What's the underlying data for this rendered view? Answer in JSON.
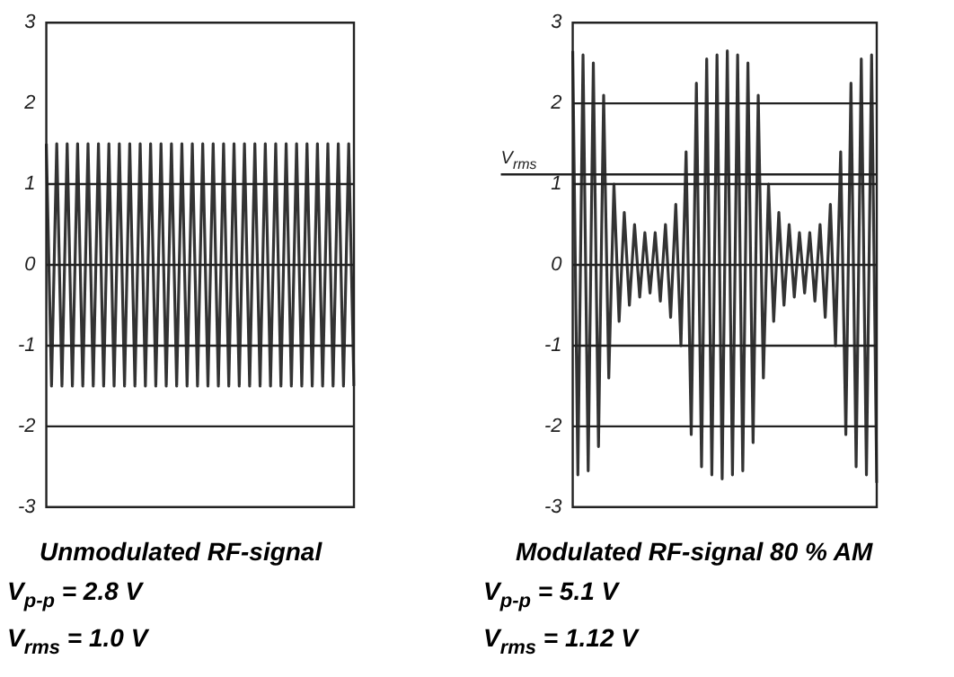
{
  "chart_data": [
    {
      "type": "line",
      "title": "Unmodulated RF-signal",
      "annotations": [
        "V$_{p-p}$ = 2.8 V",
        "V$_{rms}$ = 1.0 V"
      ],
      "categories": [
        null,
        null,
        null,
        null,
        null,
        null,
        null,
        null,
        null,
        null,
        null,
        null,
        null,
        null,
        null,
        null,
        null,
        null,
        null,
        null,
        null,
        null,
        null,
        null,
        null,
        null,
        null,
        null,
        null,
        null,
        null,
        null,
        null,
        null,
        null,
        null,
        null,
        null,
        null,
        null,
        null,
        null,
        null,
        null,
        null,
        null,
        null,
        null,
        null,
        null,
        null,
        null,
        null,
        null,
        null,
        null,
        null,
        null,
        null,
        null
      ],
      "series": [
        {
          "color": "#333333",
          "values": [
            1.5,
            -1.5,
            1.5,
            -1.5,
            1.5,
            -1.5,
            1.5,
            -1.5,
            1.5,
            -1.5,
            1.5,
            -1.5,
            1.5,
            -1.5,
            1.5,
            -1.5,
            1.5,
            -1.5,
            1.5,
            -1.5,
            1.5,
            -1.5,
            1.5,
            -1.5,
            1.5,
            -1.5,
            1.5,
            -1.5,
            1.5,
            -1.5,
            1.5,
            -1.5,
            1.5,
            -1.5,
            1.5,
            -1.5,
            1.5,
            -1.5,
            1.5,
            -1.5,
            1.5,
            -1.5,
            1.5,
            -1.5,
            1.5,
            -1.5,
            1.5,
            -1.5,
            1.5,
            -1.5,
            1.5,
            -1.5,
            1.5,
            -1.5,
            1.5,
            -1.5,
            1.5,
            -1.5,
            1.5,
            -1.5
          ]
        }
      ],
      "ylim": [
        -3,
        3
      ],
      "yticks": [
        -3,
        -2,
        -1,
        0,
        1,
        2,
        3
      ],
      "tick_labels": "y",
      "grid": false,
      "legend": false,
      "ref_lines": [
        {
          "axis": "y",
          "value": 1
        },
        {
          "axis": "y",
          "value": 0
        },
        {
          "axis": "y",
          "value": -1
        },
        {
          "axis": "y",
          "value": -2
        }
      ]
    },
    {
      "type": "line",
      "title": "Modulated RF-signal 80 % AM",
      "annotations": [
        "V$_{p-p}$ = 5.1 V",
        "V$_{rms}$ = 1.12 V"
      ],
      "categories": [
        null,
        null,
        null,
        null,
        null,
        null,
        null,
        null,
        null,
        null,
        null,
        null,
        null,
        null,
        null,
        null,
        null,
        null,
        null,
        null,
        null,
        null,
        null,
        null,
        null,
        null,
        null,
        null,
        null,
        null,
        null,
        null,
        null,
        null,
        null,
        null,
        null,
        null,
        null,
        null,
        null,
        null,
        null,
        null,
        null,
        null,
        null,
        null,
        null,
        null,
        null,
        null,
        null,
        null,
        null,
        null,
        null,
        null,
        null,
        null
      ],
      "series": [
        {
          "color": "#333333",
          "values": [
            2.65,
            -2.6,
            2.6,
            -2.55,
            2.5,
            -2.25,
            2.1,
            -1.4,
            1.0,
            -0.7,
            0.65,
            -0.5,
            0.5,
            -0.4,
            0.4,
            -0.35,
            0.4,
            -0.45,
            0.5,
            -0.65,
            0.75,
            -1.0,
            1.4,
            -2.1,
            2.25,
            -2.5,
            2.55,
            -2.6,
            2.6,
            -2.65,
            2.65,
            -2.6,
            2.6,
            -2.55,
            2.5,
            -2.2,
            2.1,
            -1.4,
            1.0,
            -0.7,
            0.65,
            -0.5,
            0.5,
            -0.4,
            0.4,
            -0.35,
            0.4,
            -0.45,
            0.5,
            -0.65,
            0.75,
            -1.0,
            1.4,
            -2.1,
            2.25,
            -2.5,
            2.55,
            -2.6,
            2.6,
            -2.7
          ]
        }
      ],
      "ylim": [
        -3,
        3
      ],
      "yticks": [
        -3,
        -2,
        -1,
        0,
        1,
        2,
        3
      ],
      "tick_labels": "y",
      "grid": false,
      "legend": false,
      "ref_lines": [
        {
          "axis": "y",
          "value": 2
        },
        {
          "axis": "y",
          "value": 1.12,
          "label": "V$_{rms}$"
        },
        {
          "axis": "y",
          "value": 1
        },
        {
          "axis": "y",
          "value": 0
        },
        {
          "axis": "y",
          "value": -1
        },
        {
          "axis": "y",
          "value": -2
        }
      ]
    }
  ]
}
